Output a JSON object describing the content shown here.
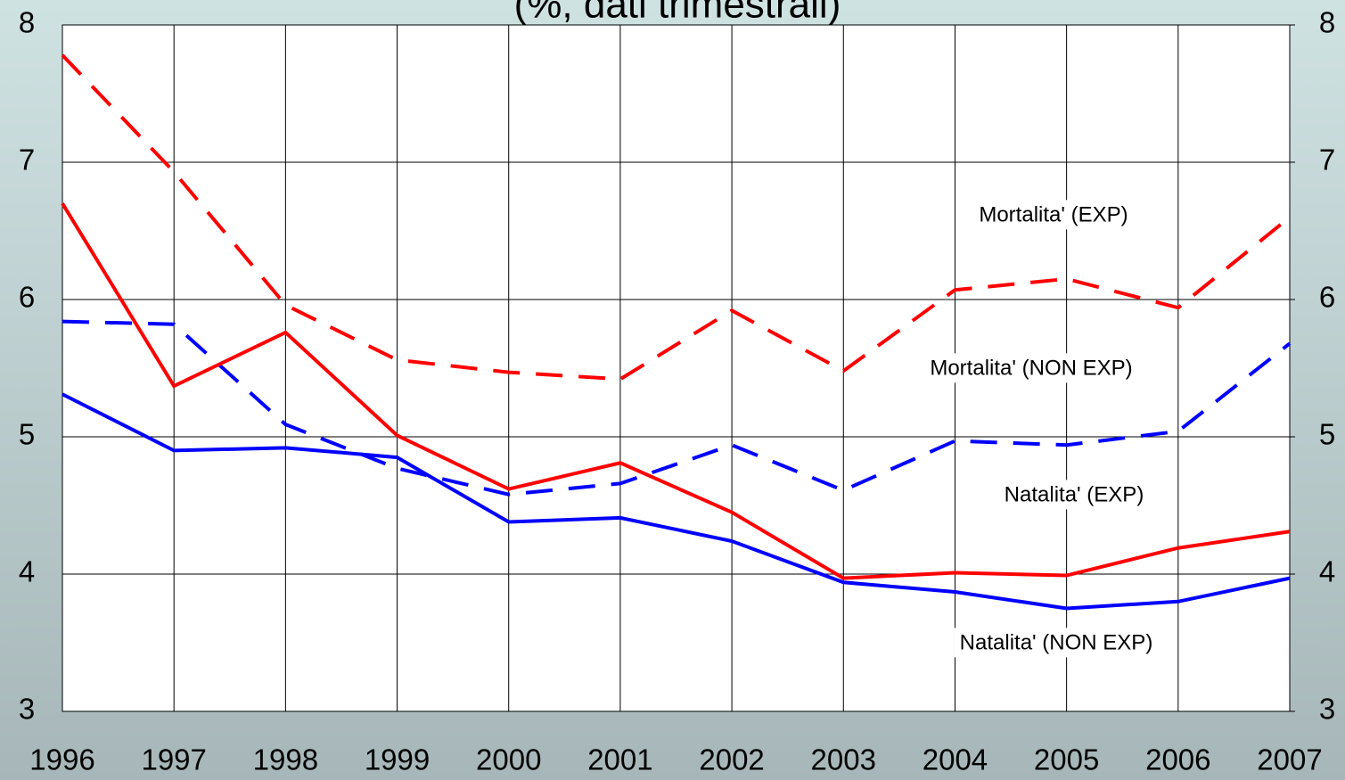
{
  "chart_data": {
    "type": "line",
    "title": "(%, dati trimestrali)",
    "categories": [
      "1996",
      "1997",
      "1998",
      "1999",
      "2000",
      "2001",
      "2002",
      "2003",
      "2004",
      "2005",
      "2006",
      "2007"
    ],
    "series": [
      {
        "name": "Mortalita' (EXP)",
        "color": "#ff0000",
        "dash": true,
        "values": [
          7.78,
          6.93,
          5.96,
          5.56,
          5.47,
          5.42,
          5.92,
          5.48,
          6.07,
          6.15,
          5.94,
          6.6
        ]
      },
      {
        "name": "Mortalita' (NON EXP)",
        "color": "#0000ff",
        "dash": true,
        "values": [
          5.84,
          5.82,
          5.09,
          4.77,
          4.58,
          4.66,
          4.94,
          4.61,
          4.97,
          4.94,
          5.04,
          5.68
        ]
      },
      {
        "name": "Natalita' (EXP)",
        "color": "#ff0000",
        "dash": false,
        "values": [
          6.7,
          5.37,
          5.76,
          5.01,
          4.62,
          4.81,
          4.45,
          3.97,
          4.01,
          3.99,
          4.19,
          4.31
        ]
      },
      {
        "name": "Natalita' (NON EXP)",
        "color": "#0000ff",
        "dash": false,
        "values": [
          5.31,
          4.9,
          4.92,
          4.85,
          4.38,
          4.41,
          4.24,
          3.94,
          3.87,
          3.75,
          3.8,
          3.97
        ]
      }
    ],
    "ylim": [
      3,
      8
    ],
    "yticks": [
      3,
      4,
      5,
      6,
      7,
      8
    ],
    "y2lim": [
      3,
      8
    ],
    "y2ticks": [
      3,
      4,
      5,
      6,
      7,
      8
    ],
    "grid": true
  }
}
